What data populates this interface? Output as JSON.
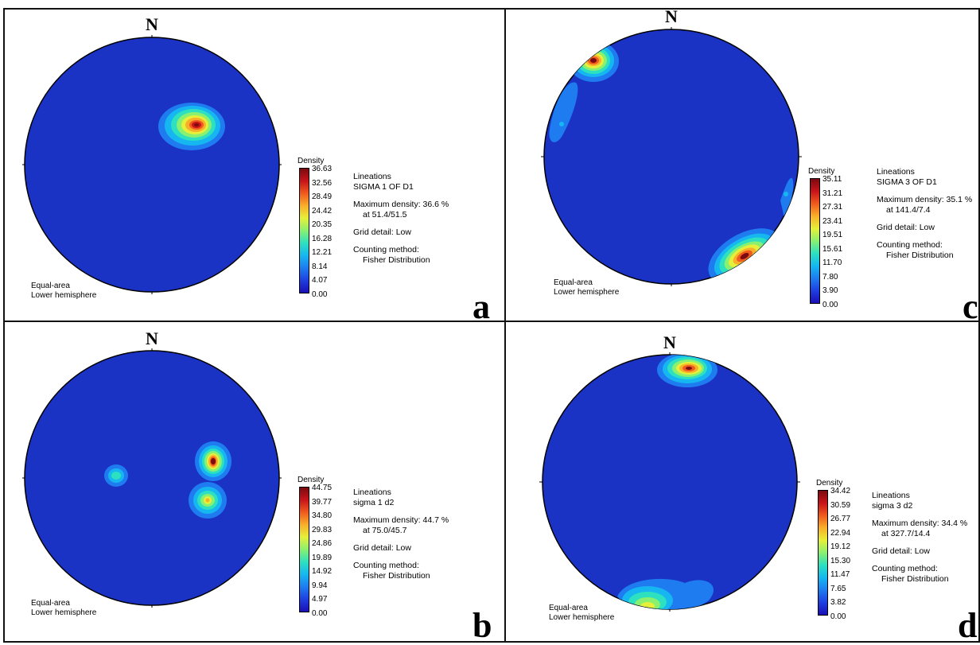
{
  "colors": {
    "scale": [
      "#1a0fb5",
      "#1f3fe0",
      "#1e7cf0",
      "#16b7f0",
      "#2de0c0",
      "#8af070",
      "#e6f03a",
      "#f8b02a",
      "#f05a1e",
      "#c8141a",
      "#7a0b10"
    ],
    "background": "#1a33c4"
  },
  "panels": [
    {
      "id": "a",
      "letter": "a",
      "north": "N",
      "projection": [
        "Equal-area",
        "Lower hemisphere"
      ],
      "legend": {
        "title": "Density",
        "ticks": [
          "36.63",
          "32.56",
          "28.49",
          "24.42",
          "20.35",
          "16.28",
          "12.21",
          "8.14",
          "4.07",
          "0.00"
        ]
      },
      "info": {
        "type": "Lineations",
        "name": "SIGMA 1 OF D1",
        "max_line": "Maximum density: 36.6 %",
        "at_line": "at 51.4/51.5",
        "grid": "Grid detail: Low",
        "method_label": "Counting method:",
        "method": "Fisher Distribution"
      }
    },
    {
      "id": "c",
      "letter": "c",
      "north": "N",
      "projection": [
        "Equal-area",
        "Lower hemisphere"
      ],
      "legend": {
        "title": "Density",
        "ticks": [
          "35.11",
          "31.21",
          "27.31",
          "23.41",
          "19.51",
          "15.61",
          "11.70",
          "7.80",
          "3.90",
          "0.00"
        ]
      },
      "info": {
        "type": "Lineations",
        "name": "SIGMA 3 OF D1",
        "max_line": "Maximum density: 35.1 %",
        "at_line": "at 141.4/7.4",
        "grid": "Grid detail: Low",
        "method_label": "Counting method:",
        "method": "Fisher Distribution"
      }
    },
    {
      "id": "b",
      "letter": "b",
      "north": "N",
      "projection": [
        "Equal-area",
        "Lower hemisphere"
      ],
      "legend": {
        "title": "Density",
        "ticks": [
          "44.75",
          "39.77",
          "34.80",
          "29.83",
          "24.86",
          "19.89",
          "14.92",
          "9.94",
          "4.97",
          "0.00"
        ]
      },
      "info": {
        "type": "Lineations",
        "name": "sigma 1 d2",
        "max_line": "Maximum density: 44.7 %",
        "at_line": "at 75.0/45.7",
        "grid": "Grid detail: Low",
        "method_label": "Counting method:",
        "method": "Fisher Distribution"
      }
    },
    {
      "id": "d",
      "letter": "d",
      "north": "N",
      "projection": [
        "Equal-area",
        "Lower hemisphere"
      ],
      "legend": {
        "title": "Density",
        "ticks": [
          "34.42",
          "30.59",
          "26.77",
          "22.94",
          "19.12",
          "15.30",
          "11.47",
          "7.65",
          "3.82",
          "0.00"
        ]
      },
      "info": {
        "type": "Lineations",
        "name": "sigma 3 d2",
        "max_line": "Maximum density: 34.4 %",
        "at_line": "at 327.7/14.4",
        "grid": "Grid detail: Low",
        "method_label": "Counting method:",
        "method": "Fisher Distribution"
      }
    }
  ]
}
